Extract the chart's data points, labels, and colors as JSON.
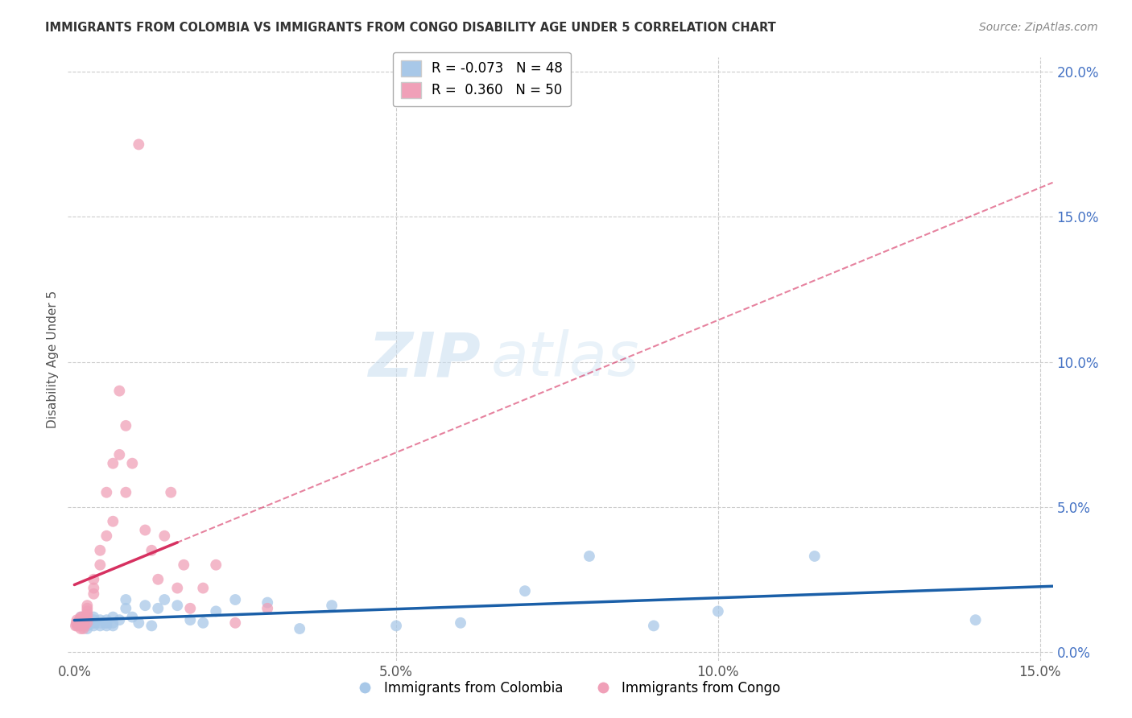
{
  "title": "IMMIGRANTS FROM COLOMBIA VS IMMIGRANTS FROM CONGO DISABILITY AGE UNDER 5 CORRELATION CHART",
  "source": "Source: ZipAtlas.com",
  "ylabel": "Disability Age Under 5",
  "xlim": [
    -0.001,
    0.152
  ],
  "ylim": [
    -0.003,
    0.205
  ],
  "yticks": [
    0.0,
    0.05,
    0.1,
    0.15,
    0.2
  ],
  "xticks": [
    0.0,
    0.05,
    0.1,
    0.15
  ],
  "colombia_R": -0.073,
  "colombia_N": 48,
  "congo_R": 0.36,
  "congo_N": 50,
  "colombia_color": "#a8c8e8",
  "congo_color": "#f0a0b8",
  "trendline_colombia_color": "#1a5fa8",
  "trendline_congo_color": "#d63060",
  "watermark_zip": "ZIP",
  "watermark_atlas": "atlas",
  "colombia_x": [
    0.0005,
    0.001,
    0.001,
    0.0015,
    0.002,
    0.002,
    0.002,
    0.002,
    0.003,
    0.003,
    0.003,
    0.003,
    0.003,
    0.004,
    0.004,
    0.004,
    0.005,
    0.005,
    0.005,
    0.005,
    0.006,
    0.006,
    0.006,
    0.007,
    0.008,
    0.008,
    0.009,
    0.01,
    0.011,
    0.012,
    0.013,
    0.014,
    0.016,
    0.018,
    0.02,
    0.022,
    0.025,
    0.03,
    0.035,
    0.04,
    0.05,
    0.06,
    0.07,
    0.08,
    0.09,
    0.1,
    0.115,
    0.14
  ],
  "colombia_y": [
    0.01,
    0.012,
    0.009,
    0.011,
    0.01,
    0.009,
    0.011,
    0.008,
    0.012,
    0.01,
    0.009,
    0.011,
    0.01,
    0.009,
    0.011,
    0.01,
    0.01,
    0.009,
    0.011,
    0.01,
    0.012,
    0.01,
    0.009,
    0.011,
    0.015,
    0.018,
    0.012,
    0.01,
    0.016,
    0.009,
    0.015,
    0.018,
    0.016,
    0.011,
    0.01,
    0.014,
    0.018,
    0.017,
    0.008,
    0.016,
    0.009,
    0.01,
    0.021,
    0.033,
    0.009,
    0.014,
    0.033,
    0.011
  ],
  "congo_x": [
    0.0002,
    0.0003,
    0.0004,
    0.0004,
    0.0005,
    0.0006,
    0.0007,
    0.0008,
    0.001,
    0.001,
    0.001,
    0.001,
    0.0012,
    0.0013,
    0.0014,
    0.0015,
    0.0016,
    0.002,
    0.002,
    0.002,
    0.002,
    0.002,
    0.002,
    0.003,
    0.003,
    0.003,
    0.004,
    0.004,
    0.005,
    0.005,
    0.006,
    0.006,
    0.007,
    0.007,
    0.008,
    0.008,
    0.009,
    0.01,
    0.011,
    0.012,
    0.013,
    0.014,
    0.015,
    0.016,
    0.017,
    0.018,
    0.02,
    0.022,
    0.025,
    0.03
  ],
  "congo_y": [
    0.009,
    0.01,
    0.009,
    0.011,
    0.01,
    0.009,
    0.01,
    0.011,
    0.012,
    0.009,
    0.01,
    0.008,
    0.01,
    0.012,
    0.008,
    0.01,
    0.009,
    0.014,
    0.016,
    0.012,
    0.013,
    0.015,
    0.01,
    0.02,
    0.025,
    0.022,
    0.03,
    0.035,
    0.04,
    0.055,
    0.045,
    0.065,
    0.068,
    0.09,
    0.055,
    0.078,
    0.065,
    0.175,
    0.042,
    0.035,
    0.025,
    0.04,
    0.055,
    0.022,
    0.03,
    0.015,
    0.022,
    0.03,
    0.01,
    0.015
  ]
}
